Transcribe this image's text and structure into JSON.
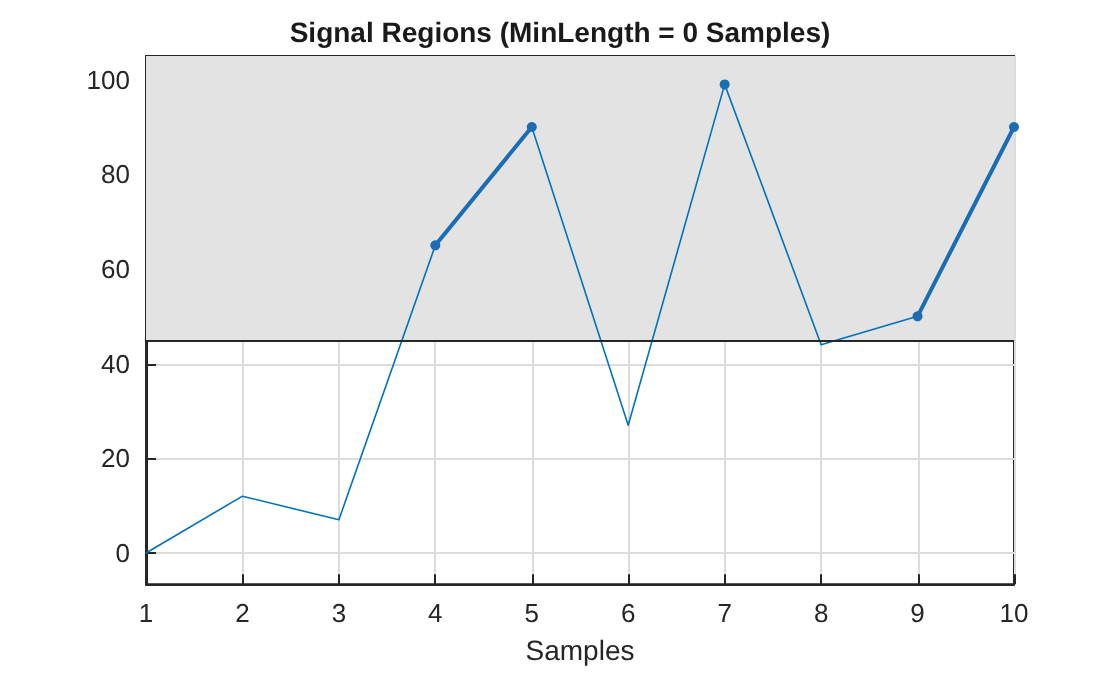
{
  "chart_data": {
    "type": "line",
    "title": "Signal Regions (MinLength = 0 Samples)",
    "xlabel": "Samples",
    "x": [
      1,
      2,
      3,
      4,
      5,
      6,
      7,
      8,
      9,
      10
    ],
    "series": [
      {
        "color": "#0072bd",
        "marker": "none",
        "values": [
          0,
          12,
          7,
          65,
          90,
          27,
          99,
          44,
          50,
          90
        ]
      },
      {
        "color": "#1a6db3",
        "marker": "circle",
        "values": [
          null,
          null,
          null,
          65,
          90,
          null,
          99,
          null,
          50,
          90
        ]
      }
    ],
    "xlim": [
      1,
      10
    ],
    "xticks": [
      1,
      2,
      3,
      4,
      5,
      6,
      7,
      8,
      9,
      10
    ],
    "ylim": [
      -6.6,
      105
    ],
    "yticks": [
      0,
      20,
      40,
      60,
      80,
      100
    ],
    "ref_lines": [
      {
        "axis": "y",
        "value": 45,
        "color": "#262626"
      }
    ],
    "bands": [
      {
        "axis": "y",
        "from": 45,
        "to": 105,
        "color": "#e3e3e3"
      }
    ],
    "grid": true
  }
}
